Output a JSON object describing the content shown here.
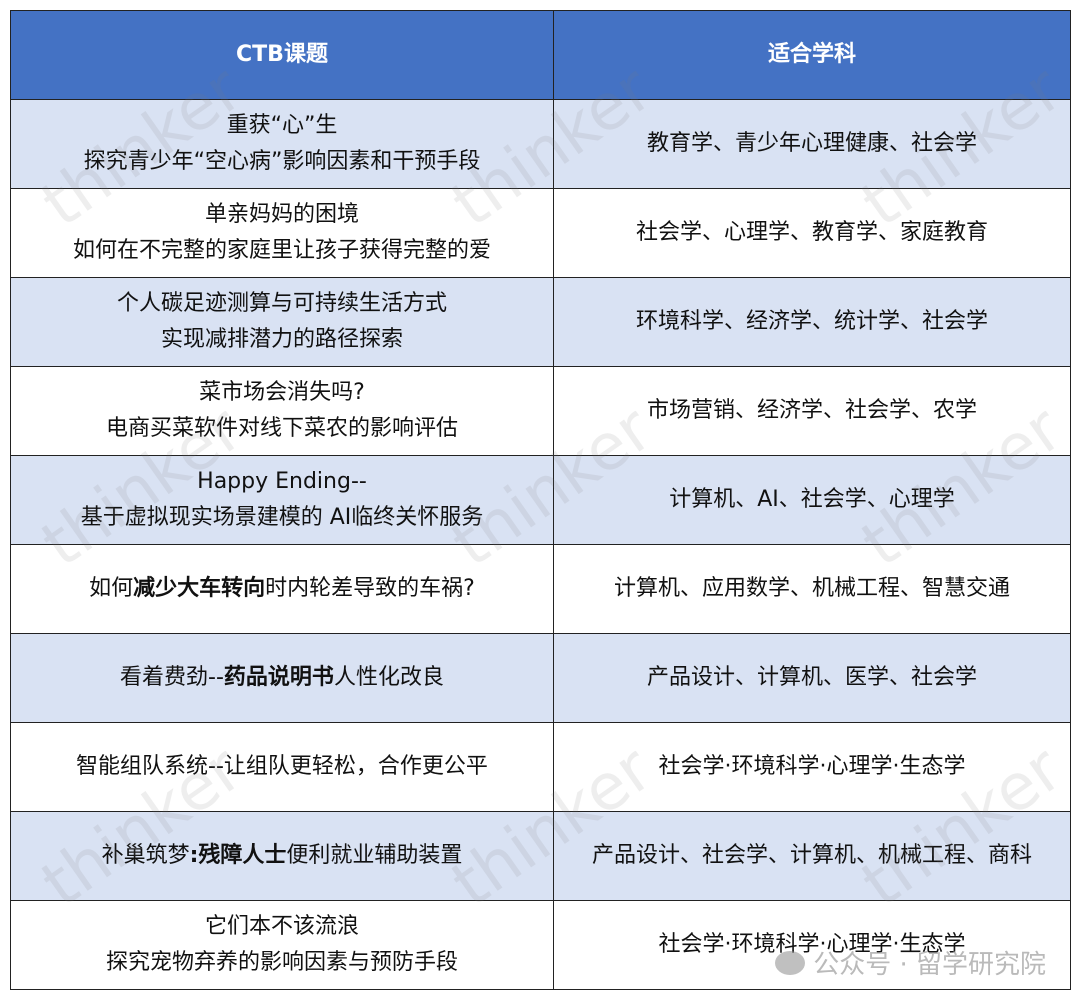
{
  "table": {
    "headers": [
      "CTB课题",
      "适合学科"
    ],
    "header_color": "#4472C4",
    "alt_row_color": "#D9E2F3",
    "rows": [
      {
        "topic": [
          [
            {
              "t": "重获“心”生"
            }
          ],
          [
            {
              "t": "探究青少年“空心病”影响因素和干预手段"
            }
          ]
        ],
        "subjects": "教育学、青少年心理健康、社会学"
      },
      {
        "topic": [
          [
            {
              "t": "单亲妈妈的困境"
            }
          ],
          [
            {
              "t": "如何在不完整的家庭里让孩子获得完整的爱"
            }
          ]
        ],
        "subjects": "社会学、心理学、教育学、家庭教育"
      },
      {
        "topic": [
          [
            {
              "t": "个人碳足迹测算与可持续生活方式"
            }
          ],
          [
            {
              "t": "实现减排潜力的路径探索"
            }
          ]
        ],
        "subjects": "环境科学、经济学、统计学、社会学"
      },
      {
        "topic": [
          [
            {
              "t": "菜市场会消失吗?"
            }
          ],
          [
            {
              "t": "电商买菜软件对线下菜农的影响评估"
            }
          ]
        ],
        "subjects": "市场营销、经济学、社会学、农学"
      },
      {
        "topic": [
          [
            {
              "t": "Happy Ending--"
            }
          ],
          [
            {
              "t": "基于虚拟现实场景建模的 AI临终关怀服务"
            }
          ]
        ],
        "subjects": "计算机、AI、社会学、心理学"
      },
      {
        "topic": [
          [
            {
              "t": "如何"
            },
            {
              "t": "减少大车转向",
              "b": true
            },
            {
              "t": "时内轮差导致的车祸?"
            }
          ]
        ],
        "subjects": "计算机、应用数学、机械工程、智慧交通"
      },
      {
        "topic": [
          [
            {
              "t": "看着费劲--"
            },
            {
              "t": "药品说明书",
              "b": true
            },
            {
              "t": "人性化改良"
            }
          ]
        ],
        "subjects": "产品设计、计算机、医学、社会学"
      },
      {
        "topic": [
          [
            {
              "t": "智能组队系统--让组队更轻松，合作更公平"
            }
          ]
        ],
        "subjects": "社会学·环境科学·心理学·生态学"
      },
      {
        "topic": [
          [
            {
              "t": "补巢筑梦"
            },
            {
              "t": ":残障人士",
              "b": true
            },
            {
              "t": "便利就业辅助装置"
            }
          ]
        ],
        "subjects": "产品设计、社会学、计算机、机械工程、商科"
      },
      {
        "topic": [
          [
            {
              "t": "它们本不该流浪"
            }
          ],
          [
            {
              "t": "探究宠物弃养的影响因素与预防手段"
            }
          ]
        ],
        "subjects": "社会学·环境科学·心理学·生态学"
      }
    ]
  },
  "watermark": {
    "text": "thinker",
    "wechat_icon": "wechat-icon",
    "wechat_text": "公众号 · 留学研究院"
  }
}
